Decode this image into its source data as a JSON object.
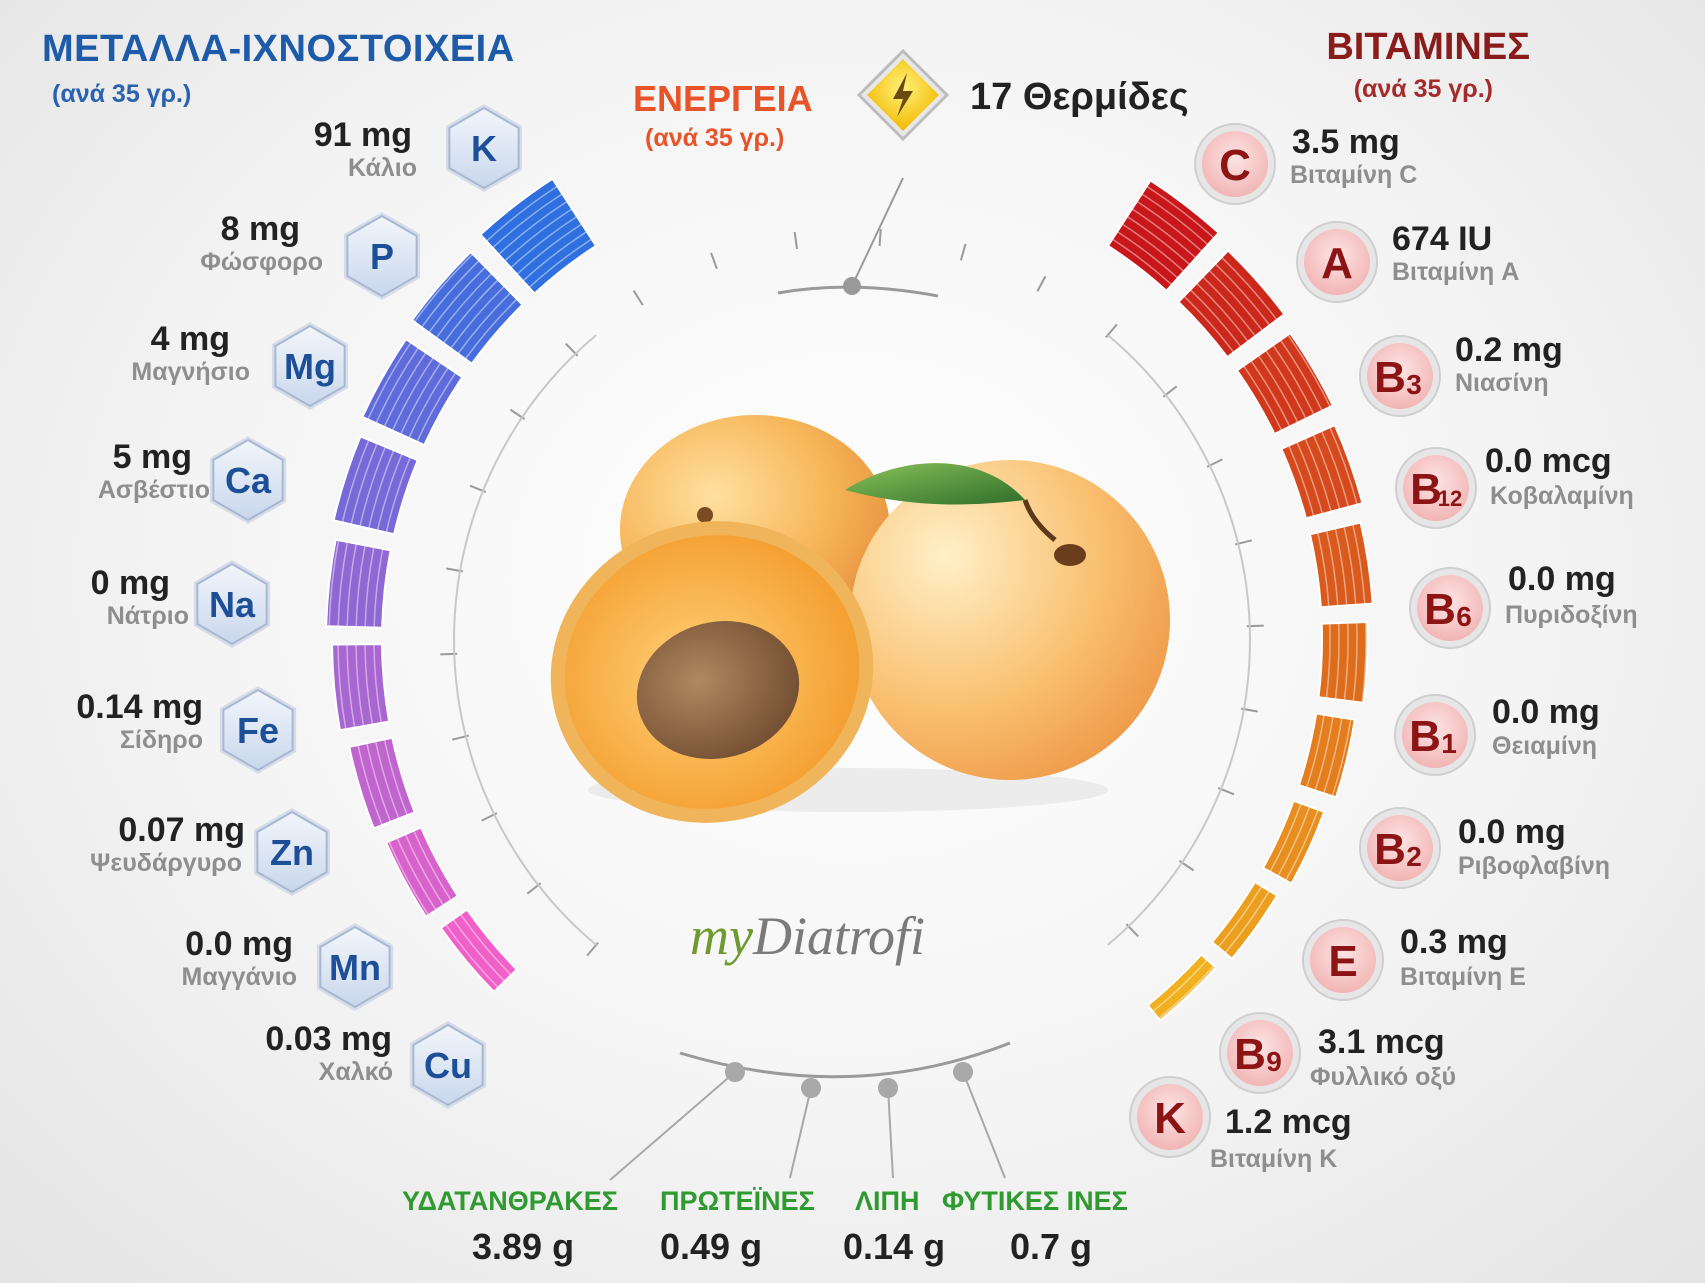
{
  "minerals": {
    "title": "ΜΕΤΑΛΛΑ-ΙΧΝΟΣΤΟΙΧΕΙΑ",
    "subtitle": "(ανά 35 γρ.)",
    "items": [
      {
        "symbol": "K",
        "value": "91 mg",
        "name": "Κάλιο"
      },
      {
        "symbol": "P",
        "value": "8 mg",
        "name": "Φώσφορο"
      },
      {
        "symbol": "Mg",
        "value": "4 mg",
        "name": "Μαγνήσιο"
      },
      {
        "symbol": "Ca",
        "value": "5 mg",
        "name": "Ασβέστιο"
      },
      {
        "symbol": "Na",
        "value": "0 mg",
        "name": "Νάτριο"
      },
      {
        "symbol": "Fe",
        "value": "0.14 mg",
        "name": "Σίδηρο"
      },
      {
        "symbol": "Zn",
        "value": "0.07 mg",
        "name": "Ψευδάργυρο"
      },
      {
        "symbol": "Mn",
        "value": "0.0 mg",
        "name": "Μαγγάνιο"
      },
      {
        "symbol": "Cu",
        "value": "0.03 mg",
        "name": "Χαλκό"
      }
    ]
  },
  "vitamins": {
    "title": "ΒΙΤΑΜΙΝΕΣ",
    "subtitle": "(ανά 35 γρ.)",
    "items": [
      {
        "symbol": "C",
        "sub": "",
        "value": "3.5 mg",
        "name": "Βιταμίνη C"
      },
      {
        "symbol": "A",
        "sub": "",
        "value": "674 IU",
        "name": "Βιταμίνη A"
      },
      {
        "symbol": "B",
        "sub": "3",
        "value": "0.2 mg",
        "name": "Νιασίνη"
      },
      {
        "symbol": "B",
        "sub": "12",
        "value": "0.0 mcg",
        "name": "Κοβαλαμίνη"
      },
      {
        "symbol": "B",
        "sub": "6",
        "value": "0.0 mg",
        "name": "Πυριδοξίνη"
      },
      {
        "symbol": "B",
        "sub": "1",
        "value": "0.0 mg",
        "name": "Θειαμίνη"
      },
      {
        "symbol": "B",
        "sub": "2",
        "value": "0.0 mg",
        "name": "Ριβοφλαβίνη"
      },
      {
        "symbol": "E",
        "sub": "",
        "value": "0.3 mg",
        "name": "Βιταμίνη E"
      },
      {
        "symbol": "B",
        "sub": "9",
        "value": "3.1 mcg",
        "name": "Φυλλικό οξύ"
      },
      {
        "symbol": "K",
        "sub": "",
        "value": "1.2 mcg",
        "name": "Βιταμίνη K"
      }
    ]
  },
  "energy": {
    "title": "ΕΝΕΡΓΕΙΑ",
    "subtitle": "(ανά 35 γρ.)",
    "value": "17 Θερμίδες"
  },
  "macros": [
    {
      "name": "ΥΔΑΤΑΝΘΡΑΚΕΣ",
      "value": "3.89 g"
    },
    {
      "name": "ΠΡΩΤΕΪΝΕΣ",
      "value": "0.49 g"
    },
    {
      "name": "ΛΙΠΗ",
      "value": "0.14 g"
    },
    {
      "name": "ΦΥΤΙΚΕΣ ΙΝΕΣ",
      "value": "0.7 g"
    }
  ],
  "logo": {
    "prefix": "my",
    "main": "Diatrofi"
  },
  "colors": {
    "mineral_title": "#1d5aa8",
    "vitamin_title": "#8b1c1c",
    "energy_title": "#e8542a",
    "macro_label": "#2f9a2f"
  }
}
